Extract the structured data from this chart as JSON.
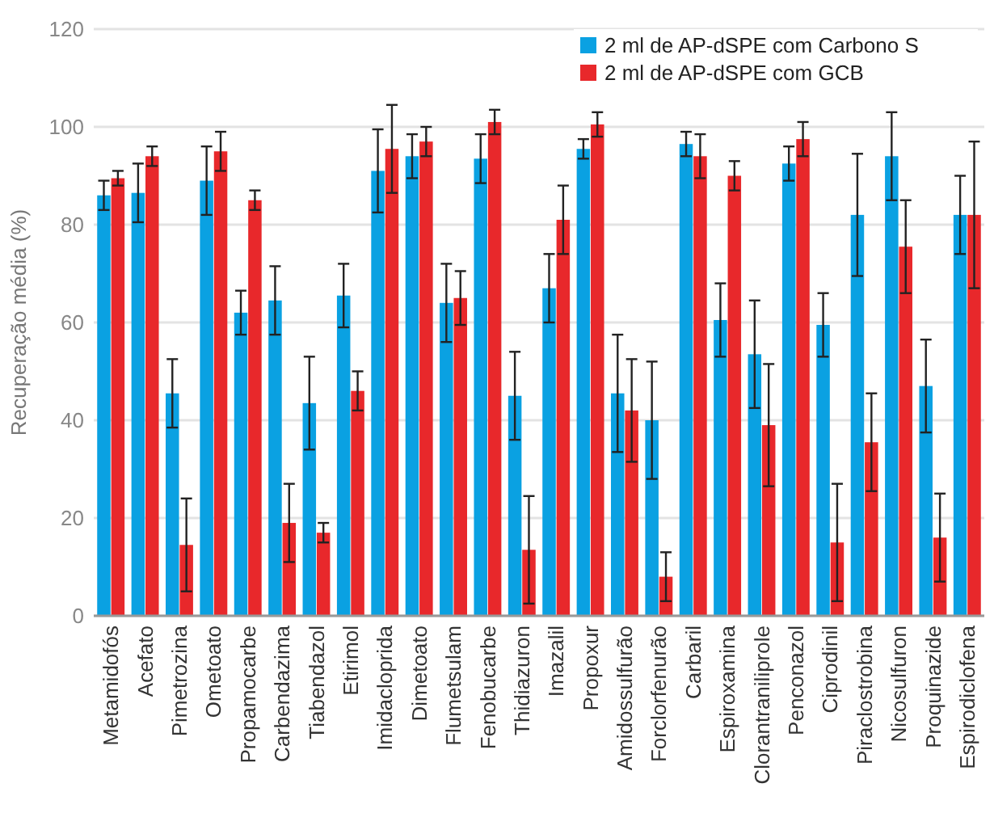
{
  "chart_data": {
    "type": "bar",
    "ylabel": "Recuperação média (%)",
    "categories": [
      "Metamidofós",
      "Acefato",
      "Pimetrozina",
      "Ometoato",
      "Propamocarbe",
      "Carbendazima",
      "Tiabendazol",
      "Etirimol",
      "Imidacloprida",
      "Dimetoato",
      "Flumetsulam",
      "Fenobucarbe",
      "Thidiazuron",
      "Imazalil",
      "Propoxur",
      "Amidossulfurão",
      "Forclorfenurão",
      "Carbaril",
      "Espiroxamina",
      "Clorantraniliprole",
      "Penconazol",
      "Ciprodinil",
      "Piraclostrobina",
      "Nicosulfuron",
      "Proquinazide",
      "Espirodiclofena"
    ],
    "series": [
      {
        "name": "2 ml de AP-dSPE com Carbono S",
        "color": "#0aa1e2",
        "values": [
          86,
          86.5,
          45.5,
          89,
          62,
          64.5,
          43.5,
          65.5,
          91,
          94,
          64,
          93.5,
          45,
          67,
          95.5,
          45.5,
          40,
          96.5,
          60.5,
          53.5,
          92.5,
          59.5,
          82,
          94,
          47,
          82
        ],
        "errors": [
          3,
          6,
          7,
          7,
          4.5,
          7,
          9.5,
          6.5,
          8.5,
          4.5,
          8,
          5,
          9,
          7,
          2,
          12,
          12,
          2.5,
          7.5,
          11,
          3.5,
          6.5,
          12.5,
          9,
          9.5,
          8
        ]
      },
      {
        "name": "2 ml de AP-dSPE com GCB",
        "color": "#e8282b",
        "values": [
          89.5,
          94,
          14.5,
          95,
          85,
          19,
          17,
          46,
          95.5,
          97,
          65,
          101,
          13.5,
          81,
          100.5,
          42,
          8,
          94,
          90,
          39,
          97.5,
          15,
          35.5,
          75.5,
          16,
          82
        ],
        "errors": [
          1.5,
          2,
          9.5,
          4,
          2,
          8,
          2,
          4,
          9,
          3,
          5.5,
          2.5,
          11,
          7,
          2.5,
          10.5,
          5,
          4.5,
          3,
          12.5,
          3.5,
          12,
          10,
          9.5,
          9,
          15
        ]
      }
    ],
    "ylim": [
      0,
      120
    ],
    "yticks": [
      0,
      20,
      40,
      60,
      80,
      100,
      120
    ],
    "grid": "y",
    "legend": "top right"
  }
}
